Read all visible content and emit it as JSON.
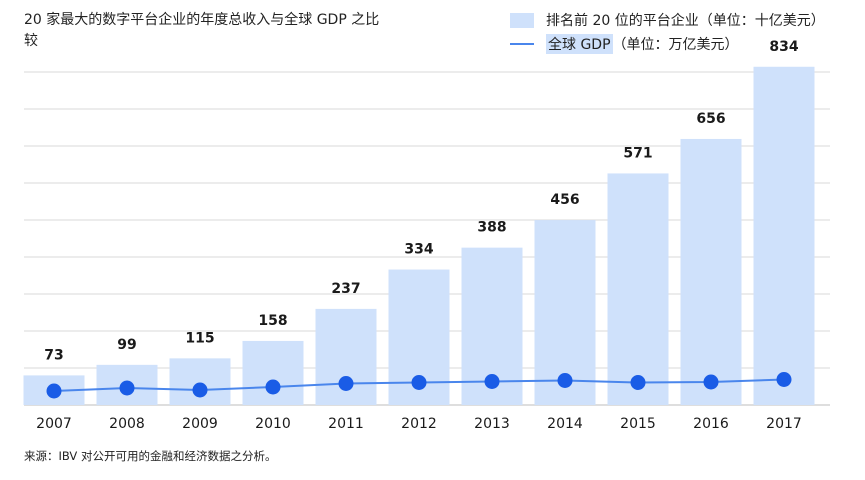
{
  "title": "20 家最大的数字平台企业的年度总收入与全球 GDP 之比较",
  "legend": {
    "bar_label": "排名前 20 位的平台企业（单位：十亿美元）",
    "line_label_main": "全球 GDP",
    "line_label_unit": "（单位：万亿美元）"
  },
  "source": "来源：IBV 对公开可用的金融和经济数据之分析。",
  "colors": {
    "bar": "#cfe1fb",
    "line": "#4a86ec",
    "point": "#1a5ce6",
    "grid": "#d9d9d9"
  },
  "chart_data": {
    "type": "bar",
    "categories": [
      "2007",
      "2008",
      "2009",
      "2010",
      "2011",
      "2012",
      "2013",
      "2014",
      "2015",
      "2016",
      "2017"
    ],
    "series": [
      {
        "name": "排名前 20 位的平台企业（单位：十亿美元）",
        "type": "bar",
        "values": [
          73,
          99,
          115,
          158,
          237,
          334,
          388,
          456,
          571,
          656,
          834
        ]
      },
      {
        "name": "全球 GDP（单位：万亿美元）",
        "type": "line",
        "values": [
          58,
          64,
          60,
          66,
          73,
          75,
          77,
          79,
          75,
          76,
          81
        ]
      }
    ],
    "ylim": [
      0,
      900
    ],
    "grid": true
  }
}
